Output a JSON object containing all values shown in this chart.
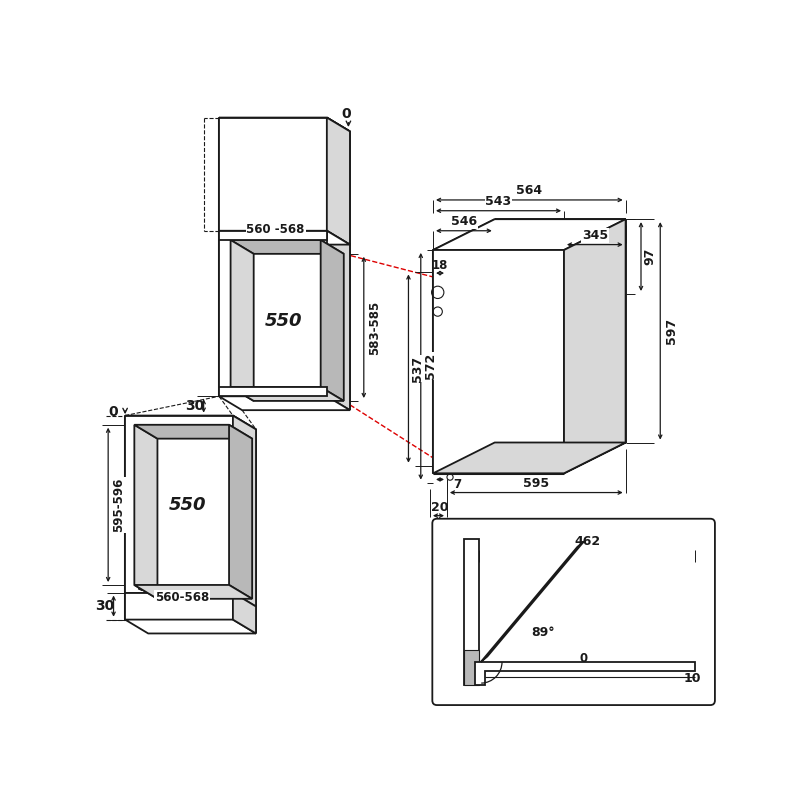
{
  "bg_color": "#ffffff",
  "line_color": "#1a1a1a",
  "gray_fill": "#b8b8b8",
  "light_gray": "#d8d8d8",
  "red_dash_color": "#dd0000"
}
